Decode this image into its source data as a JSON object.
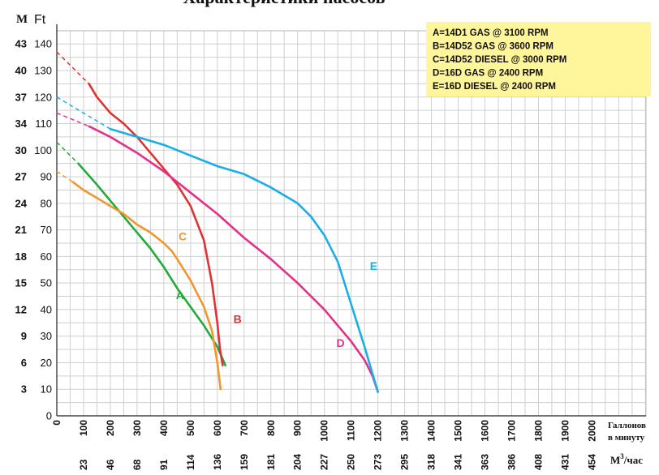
{
  "chart_data": {
    "type": "line",
    "title": "Характеристики насосов",
    "left_axis_label": "M",
    "right_axis_label": "Ft",
    "x_label_line1": "Галлонов",
    "x_label_line2": "в минуту",
    "x2_label": "M",
    "x2_label_sup": "3",
    "x2_label_tail": "/час",
    "y_ft_ticks": [
      "0",
      "10",
      "20",
      "30",
      "40",
      "50",
      "60",
      "70",
      "80",
      "90",
      "100",
      "110",
      "120",
      "130",
      "140"
    ],
    "y_m_ticks": [
      {
        "label": "3",
        "ft": 10
      },
      {
        "label": "6",
        "ft": 20
      },
      {
        "label": "9",
        "ft": 30
      },
      {
        "label": "12",
        "ft": 40
      },
      {
        "label": "15",
        "ft": 50
      },
      {
        "label": "18",
        "ft": 60
      },
      {
        "label": "21",
        "ft": 70
      },
      {
        "label": "24",
        "ft": 80
      },
      {
        "label": "27",
        "ft": 90
      },
      {
        "label": "30",
        "ft": 100
      },
      {
        "label": "34",
        "ft": 110
      },
      {
        "label": "37",
        "ft": 120
      },
      {
        "label": "40",
        "ft": 130
      },
      {
        "label": "43",
        "ft": 140
      }
    ],
    "x_gpm_ticks": [
      "0",
      "100",
      "200",
      "300",
      "400",
      "500",
      "600",
      "700",
      "800",
      "900",
      "1000",
      "1100",
      "1200",
      "1300",
      "1400",
      "1500",
      "1600",
      "1700",
      "1800",
      "1900",
      "2000"
    ],
    "x_m3_ticks": [
      "23",
      "46",
      "68",
      "91",
      "114",
      "136",
      "159",
      "181",
      "204",
      "227",
      "250",
      "273",
      "295",
      "318",
      "341",
      "363",
      "386",
      "408",
      "431",
      "454"
    ],
    "xlim": [
      0,
      2000
    ],
    "ylim": [
      0,
      145
    ],
    "grid": true,
    "legend_position": "top-right",
    "legend": [
      "A=14D1 GAS @ 3100 RPM",
      "B=14D52 GAS @ 3600 RPM",
      "C=14D52 DIESEL @ 3000 RPM",
      "D=16D GAS @ 2400 RPM",
      "E=16D DIESEL @ 2400 RPM"
    ],
    "series": [
      {
        "name": "A",
        "color": "#22aa3a",
        "dashed": [
          [
            0,
            103
          ],
          [
            80,
            95
          ]
        ],
        "points": [
          [
            80,
            95
          ],
          [
            150,
            87
          ],
          [
            200,
            81
          ],
          [
            250,
            75
          ],
          [
            300,
            69
          ],
          [
            350,
            63
          ],
          [
            400,
            56
          ],
          [
            450,
            48
          ],
          [
            500,
            41
          ],
          [
            550,
            34
          ],
          [
            600,
            26
          ],
          [
            630,
            19
          ]
        ]
      },
      {
        "name": "B",
        "color": "#e03232",
        "dashed": [
          [
            0,
            137
          ],
          [
            120,
            125
          ]
        ],
        "points": [
          [
            120,
            125
          ],
          [
            150,
            120
          ],
          [
            200,
            114
          ],
          [
            250,
            110
          ],
          [
            300,
            105
          ],
          [
            350,
            99
          ],
          [
            400,
            93
          ],
          [
            450,
            87
          ],
          [
            500,
            79
          ],
          [
            550,
            66
          ],
          [
            580,
            50
          ],
          [
            600,
            35
          ],
          [
            610,
            25
          ],
          [
            620,
            19
          ]
        ]
      },
      {
        "name": "C",
        "color": "#f0962d",
        "dashed": [
          [
            0,
            92
          ],
          [
            60,
            88
          ]
        ],
        "points": [
          [
            60,
            88
          ],
          [
            100,
            85
          ],
          [
            150,
            82
          ],
          [
            200,
            79
          ],
          [
            250,
            76
          ],
          [
            300,
            72
          ],
          [
            350,
            69
          ],
          [
            400,
            65
          ],
          [
            430,
            62
          ],
          [
            450,
            59
          ],
          [
            500,
            51
          ],
          [
            550,
            41
          ],
          [
            580,
            32
          ],
          [
            600,
            20
          ],
          [
            612,
            10
          ]
        ]
      },
      {
        "name": "D",
        "color": "#e4308a",
        "dashed": [
          [
            0,
            114
          ],
          [
            120,
            109
          ]
        ],
        "points": [
          [
            120,
            109
          ],
          [
            200,
            105
          ],
          [
            300,
            99
          ],
          [
            400,
            92
          ],
          [
            500,
            84
          ],
          [
            600,
            76
          ],
          [
            700,
            67
          ],
          [
            800,
            59
          ],
          [
            900,
            50
          ],
          [
            1000,
            40
          ],
          [
            1100,
            28
          ],
          [
            1150,
            21
          ],
          [
            1180,
            15
          ],
          [
            1200,
            9
          ]
        ]
      },
      {
        "name": "E",
        "color": "#1aaee6",
        "dashed": [
          [
            0,
            120
          ],
          [
            200,
            108
          ]
        ],
        "points": [
          [
            200,
            108
          ],
          [
            300,
            105
          ],
          [
            400,
            102
          ],
          [
            500,
            98
          ],
          [
            600,
            94
          ],
          [
            700,
            91
          ],
          [
            800,
            86
          ],
          [
            900,
            80
          ],
          [
            950,
            75
          ],
          [
            1000,
            68
          ],
          [
            1050,
            58
          ],
          [
            1100,
            42
          ],
          [
            1150,
            26
          ],
          [
            1200,
            9
          ]
        ]
      }
    ],
    "curve_labels": [
      {
        "text": "A",
        "series": "A",
        "x": 445,
        "y": 44
      },
      {
        "text": "B",
        "series": "B",
        "x": 660,
        "y": 35
      },
      {
        "text": "C",
        "series": "C",
        "x": 455,
        "y": 66
      },
      {
        "text": "D",
        "series": "D",
        "x": 1045,
        "y": 26
      },
      {
        "text": "E",
        "series": "E",
        "x": 1170,
        "y": 55
      }
    ]
  }
}
